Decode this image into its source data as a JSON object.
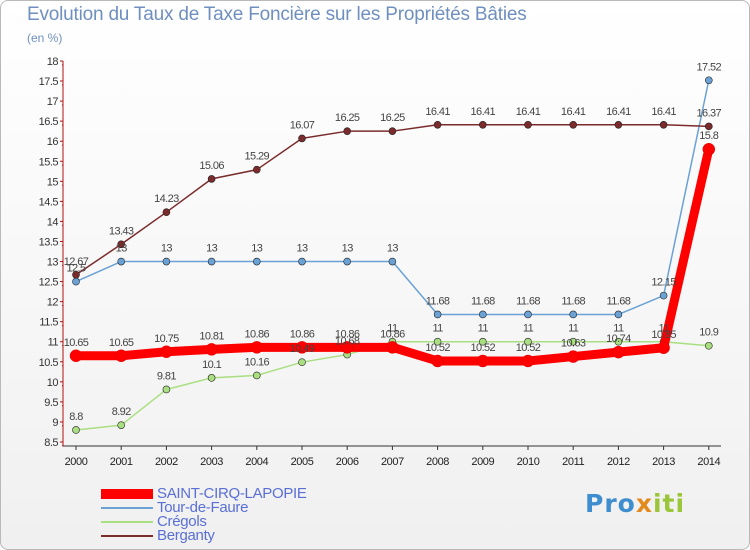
{
  "chart_data": {
    "type": "line",
    "title": "Evolution du Taux de Taxe Foncière sur les Propriétés Bâties",
    "subtitle": "(en %)",
    "categories": [
      "2000",
      "2001",
      "2002",
      "2003",
      "2004",
      "2005",
      "2006",
      "2007",
      "2008",
      "2009",
      "2010",
      "2011",
      "2012",
      "2013",
      "2014"
    ],
    "ylim": [
      8.5,
      18
    ],
    "yticks": [
      "8.5",
      "9",
      "9.5",
      "10",
      "10.5",
      "11",
      "11.5",
      "12",
      "12.5",
      "13",
      "13.5",
      "14",
      "14.5",
      "15",
      "15.5",
      "16",
      "16.5",
      "17",
      "17.5",
      "18"
    ],
    "grid": false,
    "legend": "bottom-left",
    "series": [
      {
        "name": "SAINT-CIRQ-LAPOPIE",
        "color": "#ff0000",
        "values": [
          10.65,
          10.65,
          10.75,
          10.81,
          10.86,
          10.86,
          10.86,
          10.86,
          10.52,
          10.52,
          10.52,
          10.63,
          10.74,
          10.85,
          15.8
        ],
        "labels": [
          "10.65",
          "10.65",
          "10.75",
          "10.81",
          "10.86",
          "10.86",
          "10.86",
          "10.86",
          "10.52",
          "10.52",
          "10.52",
          "10.63",
          "10.74",
          "10.85",
          "15.8"
        ]
      },
      {
        "name": "Tour-de-Faure",
        "color": "#6aa2d5",
        "values": [
          12.5,
          13,
          13,
          13,
          13,
          13,
          13,
          13,
          11.68,
          11.68,
          11.68,
          11.68,
          11.68,
          12.15,
          17.52
        ],
        "labels": [
          "12.5",
          "13",
          "13",
          "13",
          "13",
          "13",
          "13",
          "13",
          "11.68",
          "11.68",
          "11.68",
          "11.68",
          "11.68",
          "12.15",
          "17.52"
        ]
      },
      {
        "name": "Crégols",
        "color": "#a9df80",
        "values": [
          8.8,
          8.92,
          9.81,
          10.1,
          10.16,
          10.49,
          10.68,
          11,
          11,
          11,
          11,
          11,
          11,
          11,
          10.9
        ],
        "labels": [
          "8.8",
          "8.92",
          "9.81",
          "10.1",
          "10.16",
          "10.49",
          "10.68",
          "11",
          "11",
          "11",
          "11",
          "11",
          "11",
          "11",
          "10.9"
        ]
      },
      {
        "name": "Berganty",
        "color": "#7b2b2b",
        "values": [
          12.67,
          13.43,
          14.23,
          15.06,
          15.29,
          16.07,
          16.25,
          16.25,
          16.41,
          16.41,
          16.41,
          16.41,
          16.41,
          16.41,
          16.37
        ],
        "labels": [
          "12.67",
          "13.43",
          "14.23",
          "15.06",
          "15.29",
          "16.07",
          "16.25",
          "16.25",
          "16.41",
          "16.41",
          "16.41",
          "16.41",
          "16.41",
          "16.41",
          "16.37"
        ]
      }
    ]
  },
  "legend_items": [
    {
      "name": "SAINT-CIRQ-LAPOPIE",
      "color": "#ff0000",
      "text_color": "#5a6fd6"
    },
    {
      "name": "Tour-de-Faure",
      "color": "#6aa2d5",
      "text_color": "#5a6fd6"
    },
    {
      "name": "Crégols",
      "color": "#a9df80",
      "text_color": "#5a6fd6"
    },
    {
      "name": "Berganty",
      "color": "#7b2b2b",
      "text_color": "#5a6fd6"
    }
  ],
  "logo": {
    "part1": "Pro",
    "part2": "x",
    "part3": "iti"
  }
}
